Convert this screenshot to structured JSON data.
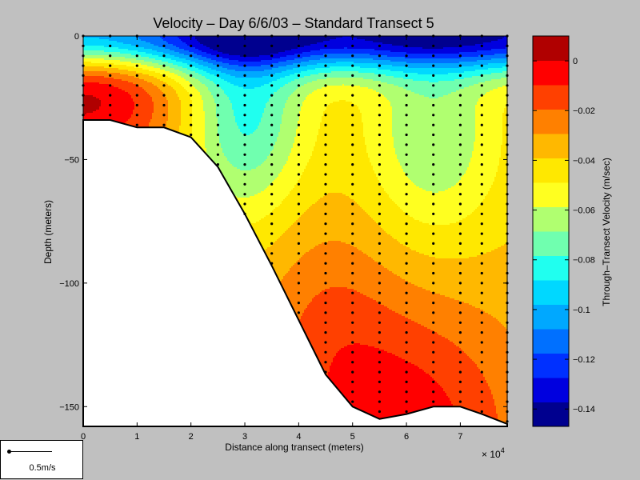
{
  "chart_data": {
    "type": "heatmap",
    "title": "Velocity – Day 6/6/03 – Standard Transect 5",
    "xlabel": "Distance along transect (meters)",
    "x_exponent_label": "× 10",
    "x_exponent_power": "4",
    "ylabel": "Depth (meters)",
    "colorbar_label": "Through–Transect Velocity (m/sec)",
    "xlim": [
      0,
      78700
    ],
    "ylim": [
      -158,
      0
    ],
    "x_ticks": [
      0,
      10000,
      20000,
      30000,
      40000,
      50000,
      60000,
      70000
    ],
    "x_tick_labels": [
      "0",
      "1",
      "2",
      "3",
      "4",
      "5",
      "6",
      "7"
    ],
    "y_ticks": [
      0,
      -50,
      -100,
      -150
    ],
    "y_tick_labels": [
      "0",
      "−50",
      "−100",
      "−150"
    ],
    "colorbar_ticks": [
      0,
      -0.02,
      -0.04,
      -0.06,
      -0.08,
      -0.1,
      -0.12,
      -0.14
    ],
    "colorbar_tick_labels": [
      "0",
      "−0.02",
      "−0.04",
      "−0.06",
      "−0.08",
      "−0.1",
      "−0.12",
      "−0.14"
    ],
    "clim": [
      -0.147,
      0.01
    ],
    "colors": [
      "#00008f",
      "#0000df",
      "#0030ff",
      "#0070ff",
      "#00a8ff",
      "#00d8ff",
      "#20ffef",
      "#70ffaf",
      "#b0ff70",
      "#ffff20",
      "#ffe800",
      "#ffb800",
      "#ff8000",
      "#ff4000",
      "#ff0000",
      "#b00000"
    ],
    "station_x": [
      0,
      5000,
      10000,
      15000,
      20000,
      25000,
      30000,
      35000,
      40000,
      45000,
      50000,
      55000,
      60000,
      65000,
      70000,
      74000,
      78700
    ],
    "bottom_depth": [
      -34,
      -34,
      -37,
      -37,
      -41,
      -53,
      -72,
      -93,
      -115,
      -137,
      -150,
      -155,
      -153,
      -150,
      -150,
      -153,
      -157
    ],
    "scale_label": "0.5m/s"
  }
}
